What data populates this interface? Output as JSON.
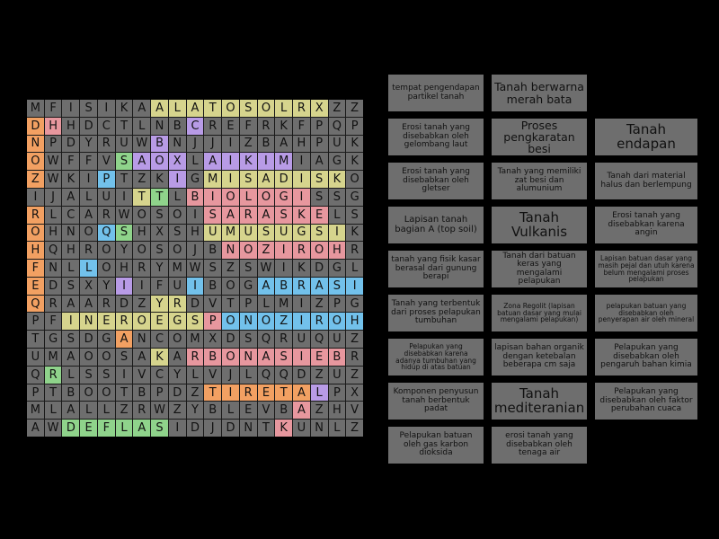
{
  "puzzle": {
    "grid": [
      "MFISIKAALATOSOLRXZZ",
      "DHHDCTLNBCREFRKFPQP",
      "NPDYRUWBNJJIZBAHPUK",
      "OWFFVSAOXLAIKIMIAGK",
      "ZWKIPTZKIGMISADISKO",
      "IJALUITTLBIOLOGISSG",
      "RLCARWOSOISARASKELS",
      "OHNOQSHXSHUMUSUGSIK",
      "HQHROYOSOJBNOZIROHR",
      "FNLLOHRYMWSZSWIKDGL",
      "EDSXYIIFUIBOGABRASI",
      "QRAARDZYRDVTPLMIZPG",
      "PFINEROEGSPONOZIROH",
      "TGSDGANCOMXDSQRUQUZ",
      "UMAOOSAKARBONASIEBR",
      "QRLSSIVCYLVJLQQDZUZ",
      "PTBOOTBPDZTIRETALPX",
      "MLALLZRWZYBLEVBAZHV",
      "AWDEFLASIDJDNTKUNLZ"
    ],
    "colors": {
      "r": "#e7979e",
      "o": "#f2a062",
      "y": "#d6d48d",
      "g": "#8fd38b",
      "b": "#72c1eb",
      "p": "#b89be6",
      "n": "#6e6e6e"
    },
    "color_map": [
      "nnnnnnnyyyyyyyyyynn",
      "ornnnnnnnpnnnnnnnnn",
      "onnnnnnpnnnnnnnnnnn",
      "onnnngpppnpppppnnnn",
      "onnnbnnnpnyyyyyyyyn",
      "nnnnnnygnrrrrrrrnnn",
      "onnnnnnnnnrrrrrrrnn",
      "onnnbgnnnnyyyyyyyyn",
      "onnnnnnnnnnrrrrrrrn",
      "onnbnnnnnnnnnnnnnnn",
      "onnnnpnnnbnnnbbbbbb",
      "onnnnnnyynnnnnnnnnn",
      "nnyyyyyyyyrbbbbbbbb",
      "nnnnnonnnnnnnnnnnnn",
      "nnnnnnnynrrrrrrrrrn",
      "ngnnnnnnnnnnnnnnnnn",
      "nnnnnnnnnnoooooopnn",
      "nnnnnnnnnnnnnnnrnnn",
      "nnggggggnnnnnnrnnnn"
    ]
  },
  "cards": [
    "tempat pengendapan partikel tanah",
    "Tanah berwarna merah bata",
    "",
    "Erosi tanah yang disebabkan oleh gelombang laut",
    "Proses pengkaratan besi",
    "Tanah endapan",
    "Erosi tanah yang disebabkan oleh gletser",
    "Tanah yang memiliki zat besi dan alumunium",
    "Tanah dari material halus dan berlempung",
    "Lapisan tanah bagian A (top soil)",
    "Tanah Vulkanis",
    "Erosi tanah yang disebabkan karena angin",
    "tanah yang fisik kasar berasal dari gunung berapi",
    "Tanah dari batuan keras yang mengalami pelapukan",
    "Lapisan batuan dasar yang masih pejal dan utuh karena belum mengalami proses pelapukan",
    "Tanah yang terbentuk dari proses pelapukan tumbuhan",
    "Zona Regolit (lapisan batuan dasar yang mulai mengalami pelapukan)",
    "pelapukan batuan yang disebabkan oleh penyerapan air oleh mineral",
    "Pelapukan yang disebabkan karena adanya tumbuhan yang hidup di atas batuan",
    "lapisan bahan organik dengan ketebalan beberapa cm saja",
    "Pelapukan yang disebabkan oleh pengaruh bahan kimia",
    "Komponen penyusun tanah berbentuk padat",
    "Tanah mediteranian",
    "Pelapukan yang disebabkan oleh faktor perubahan cuaca",
    "Pelapukan batuan oleh gas karbon dioksida",
    "erosi tanah yang disebabkan oleh tenaga air",
    ""
  ]
}
